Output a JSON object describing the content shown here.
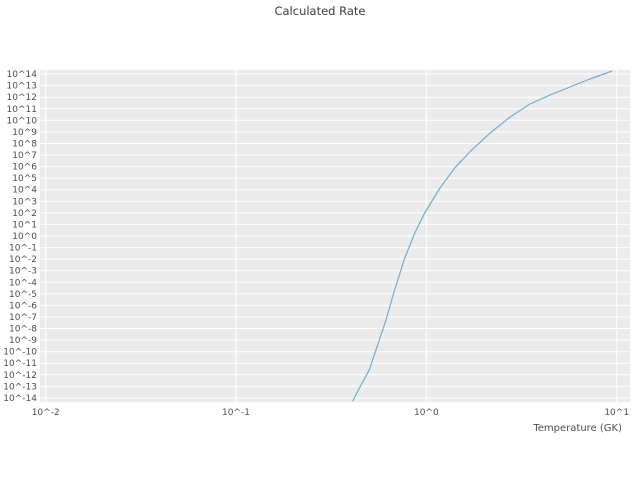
{
  "chart_data": {
    "type": "line",
    "title": "Calculated Rate",
    "xlabel": "Temperature (GK)",
    "ylabel": "",
    "x_scale": "log",
    "y_scale": "log",
    "xlim": [
      0.01,
      10
    ],
    "ylim": [
      1e-14,
      100000000000000.0
    ],
    "grid": true,
    "legend": "none",
    "line_color": "#6baed6",
    "panel_color": "#ebebeb",
    "grid_color": "#ffffff",
    "x_ticks": [
      {
        "value": 0.01,
        "label": "10^-2"
      },
      {
        "value": 0.1,
        "label": "10^-1"
      },
      {
        "value": 1,
        "label": "10^0"
      },
      {
        "value": 10,
        "label": "10^1"
      }
    ],
    "y_ticks": [
      {
        "exp": 14,
        "label": "10^14"
      },
      {
        "exp": 13,
        "label": "10^13"
      },
      {
        "exp": 12,
        "label": "10^12"
      },
      {
        "exp": 11,
        "label": "10^11"
      },
      {
        "exp": 10,
        "label": "10^10"
      },
      {
        "exp": 9,
        "label": "10^9"
      },
      {
        "exp": 8,
        "label": "10^8"
      },
      {
        "exp": 7,
        "label": "10^7"
      },
      {
        "exp": 6,
        "label": "10^6"
      },
      {
        "exp": 5,
        "label": "10^5"
      },
      {
        "exp": 4,
        "label": "10^4"
      },
      {
        "exp": 3,
        "label": "10^3"
      },
      {
        "exp": 2,
        "label": "10^2"
      },
      {
        "exp": 1,
        "label": "10^1"
      },
      {
        "exp": 0,
        "label": "10^0"
      },
      {
        "exp": -1,
        "label": "10^-1"
      },
      {
        "exp": -2,
        "label": "10^-2"
      },
      {
        "exp": -3,
        "label": "10^-3"
      },
      {
        "exp": -4,
        "label": "10^-4"
      },
      {
        "exp": -5,
        "label": "10^-5"
      },
      {
        "exp": -6,
        "label": "10^-6"
      },
      {
        "exp": -7,
        "label": "10^-7"
      },
      {
        "exp": -8,
        "label": "10^-8"
      },
      {
        "exp": -9,
        "label": "10^-9"
      },
      {
        "exp": -10,
        "label": "10^-10"
      },
      {
        "exp": -11,
        "label": "10^-11"
      },
      {
        "exp": -12,
        "label": "10^-12"
      },
      {
        "exp": -13,
        "label": "10^-13"
      },
      {
        "exp": -14,
        "label": "10^-14"
      }
    ],
    "series": [
      {
        "name": "calculated-rate",
        "points": [
          [
            0.41,
            5e-15
          ],
          [
            0.43,
            2.5e-14
          ],
          [
            0.46,
            2e-13
          ],
          [
            0.5,
            2.5e-12
          ],
          [
            0.54,
            1e-10
          ],
          [
            0.61,
            4e-08
          ],
          [
            0.68,
            2e-05
          ],
          [
            0.77,
            0.013
          ],
          [
            0.87,
            1.8
          ],
          [
            0.98,
            100.0
          ],
          [
            1.18,
            14000.0
          ],
          [
            1.41,
            790000.0
          ],
          [
            1.7,
            20000000.0
          ],
          [
            2.16,
            790000000.0
          ],
          [
            2.75,
            19000000000.0
          ],
          [
            3.5,
            260000000000.0
          ],
          [
            4.46,
            1500000000000.0
          ],
          [
            5.68,
            7600000000000.0
          ],
          [
            7.24,
            37000000000000.0
          ],
          [
            9.45,
            180000000000000.0
          ]
        ]
      }
    ]
  }
}
